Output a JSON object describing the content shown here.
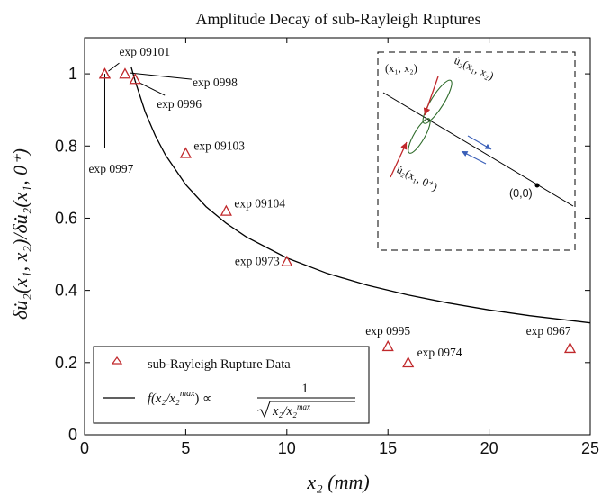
{
  "chart_data": {
    "type": "scatter",
    "title": "Amplitude Decay of sub-Rayleigh Ruptures",
    "xlabel": "x₂ (mm)",
    "ylabel": "δu̇₂(x₁, x₂)/δu̇₂(x₁, 0⁺)",
    "xlim": [
      0,
      25
    ],
    "ylim": [
      0,
      1.1
    ],
    "xticks": [
      "0",
      "5",
      "10",
      "15",
      "20",
      "25"
    ],
    "yticks": [
      "0",
      "0.2",
      "0.4",
      "0.6",
      "0.8",
      "1"
    ],
    "grid": false,
    "legend_position": "bottom-left",
    "series": [
      {
        "name": "sub-Rayleigh Rupture Data",
        "marker": "triangle",
        "color": "#c0282b",
        "points": [
          {
            "x": 1.0,
            "y": 1.0,
            "label": "exp 0997"
          },
          {
            "x": 1.0,
            "y": 1.0,
            "label": "exp 09101"
          },
          {
            "x": 2.0,
            "y": 1.0,
            "label": "exp 0998"
          },
          {
            "x": 2.5,
            "y": 0.985,
            "label": "exp 0996"
          },
          {
            "x": 5.0,
            "y": 0.78,
            "label": "exp 09103"
          },
          {
            "x": 7.0,
            "y": 0.62,
            "label": "exp 09104"
          },
          {
            "x": 10.0,
            "y": 0.48,
            "label": "exp 0973"
          },
          {
            "x": 15.0,
            "y": 0.245,
            "label": "exp 0995"
          },
          {
            "x": 16.0,
            "y": 0.2,
            "label": "exp 0974"
          },
          {
            "x": 24.0,
            "y": 0.24,
            "label": "exp 0967"
          }
        ]
      },
      {
        "name": "f(x₂/x₂ᵐᵃˣ) ∝ 1/√(x₂/x₂ᵐᵃˣ)",
        "type": "line",
        "color": "#000000",
        "x": [
          2.3,
          2.5,
          3,
          3.5,
          4,
          5,
          6,
          7,
          8,
          10,
          12,
          14,
          16,
          18,
          20,
          22,
          25
        ],
        "y": [
          1.02,
          0.98,
          0.894,
          0.828,
          0.775,
          0.693,
          0.632,
          0.586,
          0.548,
          0.49,
          0.447,
          0.414,
          0.387,
          0.365,
          0.346,
          0.33,
          0.31
        ]
      }
    ]
  },
  "legend": {
    "data_label": "sub-Rayleigh Rupture Data",
    "fit_label_lhs": "f(x₂/x₂",
    "fit_label_sup": "max",
    "fit_label_mid": ") ∝",
    "fit_numerator": "1",
    "fit_denominator": "x₂/x₂"
  },
  "inset": {
    "label_top_left": "(x₁, x₂)",
    "label_top_right": "u̇₂(x₁, x₂)",
    "label_bottom": "u̇₂(x₁, 0⁺)",
    "label_origin": "(0,0)"
  },
  "colors": {
    "marker": "#c0282b",
    "fit_line": "#000000",
    "inset_lobes": "#2e6b2a",
    "inset_arrows": "#c0282b",
    "inset_slip_arrows": "#3a5fb8"
  }
}
